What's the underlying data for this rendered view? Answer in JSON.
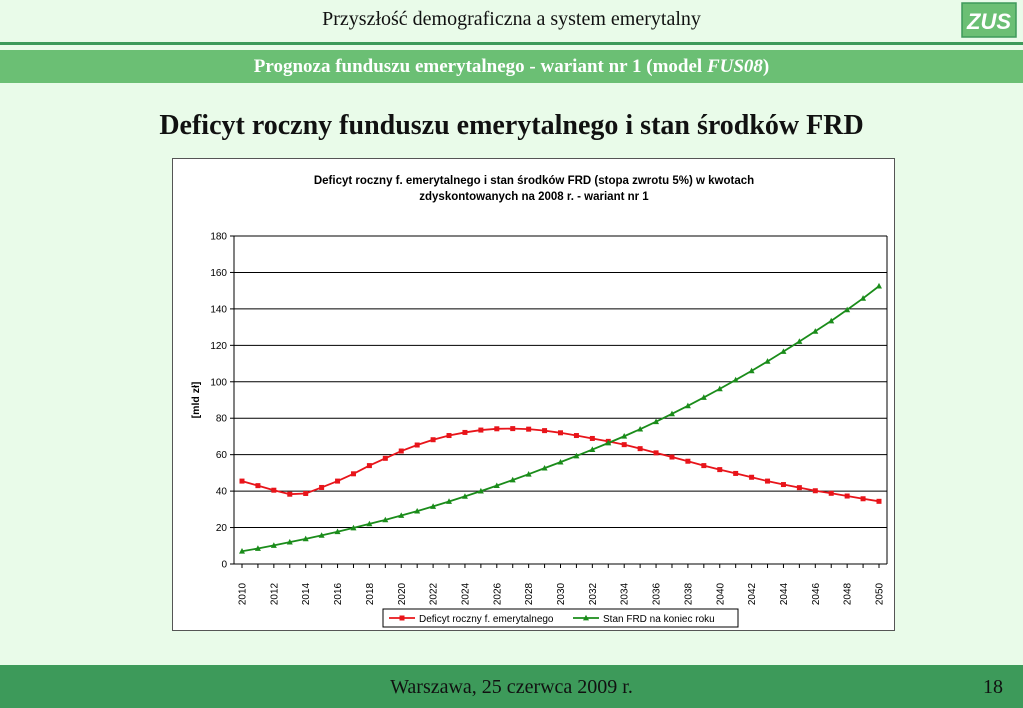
{
  "header": {
    "title": "Przyszłość demograficzna a system emerytalny",
    "logo_text": "ZUS",
    "subtitle_main": "Prognoza funduszu emerytalnego - wariant nr 1 (model ",
    "subtitle_italic": "FUS08",
    "subtitle_end": ")"
  },
  "main": {
    "title": "Deficyt roczny funduszu emerytalnego i stan środków FRD"
  },
  "footer": {
    "text": "Warszawa, 25 czerwca 2009 r.",
    "page": "18"
  },
  "colors": {
    "green_dark": "#3d9a5a",
    "green_light": "#6bbf74",
    "deficit_series": "#e8141a",
    "frd_series": "#1a8c1a"
  },
  "chart_data": {
    "type": "line",
    "title_line1": "Deficyt roczny f. emerytalnego i stan środków FRD (stopa zwrotu 5%) w kwotach",
    "title_line2": "zdyskontowanych na 2008 r. - wariant nr 1",
    "xlabel": "",
    "ylabel": "[mld zł]",
    "ylim": [
      0,
      180
    ],
    "yticks": [
      0,
      20,
      40,
      60,
      80,
      100,
      120,
      140,
      160,
      180
    ],
    "xlim": [
      2010,
      2050
    ],
    "xtick_labels": [
      "2010",
      "2012",
      "2014",
      "2016",
      "2018",
      "2020",
      "2022",
      "2024",
      "2026",
      "2028",
      "2030",
      "2032",
      "2034",
      "2036",
      "2038",
      "2040",
      "2042",
      "2044",
      "2046",
      "2048",
      "2050"
    ],
    "grid": "horizontal",
    "legend_position": "bottom",
    "x": [
      2010,
      2011,
      2012,
      2013,
      2014,
      2015,
      2016,
      2017,
      2018,
      2019,
      2020,
      2021,
      2022,
      2023,
      2024,
      2025,
      2026,
      2027,
      2028,
      2029,
      2030,
      2031,
      2032,
      2033,
      2034,
      2035,
      2036,
      2037,
      2038,
      2039,
      2040,
      2041,
      2042,
      2043,
      2044,
      2045,
      2046,
      2047,
      2048,
      2049,
      2050
    ],
    "series": [
      {
        "name": "Deficyt roczny f. emerytalnego",
        "color": "#e8141a",
        "marker": "square",
        "values": [
          45.5,
          43,
          40.5,
          38.3,
          38.7,
          42,
          45.5,
          49.5,
          54,
          58,
          62,
          65.3,
          68.2,
          70.5,
          72.2,
          73.5,
          74.2,
          74.3,
          74,
          73.2,
          72,
          70.5,
          68.9,
          67.3,
          65.5,
          63.3,
          61,
          58.7,
          56.4,
          54,
          51.8,
          49.7,
          47.6,
          45.5,
          43.6,
          41.9,
          40.2,
          38.8,
          37.3,
          35.8,
          34.4
        ]
      },
      {
        "name": "Stan FRD na koniec roku",
        "color": "#1a8c1a",
        "marker": "triangle",
        "values": [
          7,
          8.5,
          10.2,
          12,
          13.8,
          15.7,
          17.7,
          19.8,
          22,
          24.2,
          26.6,
          29,
          31.6,
          34.3,
          37.1,
          40,
          43,
          46.1,
          49.3,
          52.6,
          55.9,
          59.3,
          62.8,
          66.4,
          70.1,
          74,
          78.1,
          82.4,
          86.8,
          91.4,
          96.1,
          101,
          106,
          111.2,
          116.6,
          122.1,
          127.7,
          133.4,
          139.5,
          145.8,
          152.5
        ]
      }
    ]
  }
}
